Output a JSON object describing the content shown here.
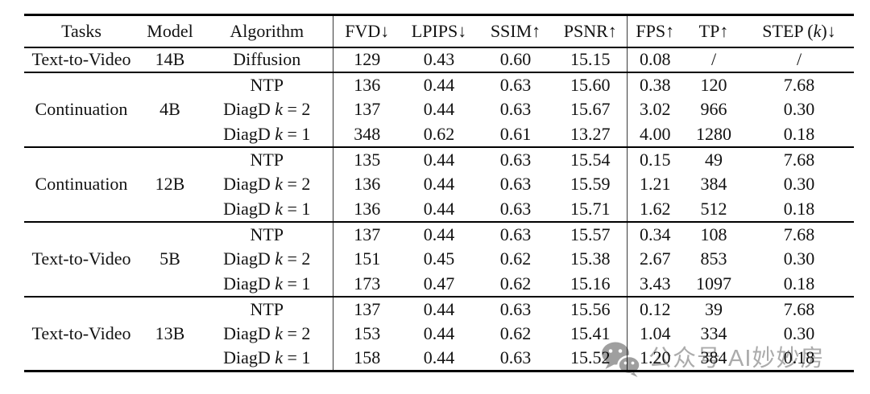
{
  "table": {
    "headers": [
      {
        "id": "tasks",
        "segments": [
          {
            "t": "Tasks"
          }
        ]
      },
      {
        "id": "model",
        "segments": [
          {
            "t": "Model"
          }
        ]
      },
      {
        "id": "algorithm",
        "segments": [
          {
            "t": "Algorithm"
          }
        ]
      },
      {
        "id": "fvd",
        "segments": [
          {
            "t": "FVD↓"
          }
        ]
      },
      {
        "id": "lpips",
        "segments": [
          {
            "t": "LPIPS↓"
          }
        ]
      },
      {
        "id": "ssim",
        "segments": [
          {
            "t": "SSIM↑"
          }
        ]
      },
      {
        "id": "psnr",
        "segments": [
          {
            "t": "PSNR↑"
          }
        ]
      },
      {
        "id": "fps",
        "segments": [
          {
            "t": "FPS↑"
          }
        ]
      },
      {
        "id": "tp",
        "segments": [
          {
            "t": "TP↑"
          }
        ]
      },
      {
        "id": "step",
        "segments": [
          {
            "t": "STEP ("
          },
          {
            "t": "k",
            "i": true
          },
          {
            "t": ")↓"
          }
        ]
      }
    ],
    "metric_columns": [
      "fvd",
      "lpips",
      "ssim",
      "psnr",
      "fps",
      "tp",
      "step"
    ],
    "groups": [
      {
        "task": "Text-to-Video",
        "model": "14B",
        "rows": [
          {
            "algorithm": [
              {
                "t": "Diffusion"
              }
            ],
            "metrics": [
              {
                "v": "129",
                "b": true
              },
              {
                "v": "0.43",
                "b": true
              },
              {
                "v": "0.60"
              },
              {
                "v": "15.15"
              },
              {
                "v": "0.08"
              },
              {
                "v": "/"
              },
              {
                "v": "/"
              }
            ]
          }
        ]
      },
      {
        "task": "Continuation",
        "model": "4B",
        "rows": [
          {
            "algorithm": [
              {
                "t": "NTP"
              }
            ],
            "metrics": [
              {
                "v": "136"
              },
              {
                "v": "0.44"
              },
              {
                "v": "0.63"
              },
              {
                "v": "15.60"
              },
              {
                "v": "0.38"
              },
              {
                "v": "120"
              },
              {
                "v": "7.68"
              }
            ]
          },
          {
            "algorithm": [
              {
                "t": "DiagD "
              },
              {
                "t": "k",
                "i": true
              },
              {
                "t": " = 2"
              }
            ],
            "metrics": [
              {
                "v": "137"
              },
              {
                "v": "0.44"
              },
              {
                "v": "0.63"
              },
              {
                "v": "15.67"
              },
              {
                "v": "3.02"
              },
              {
                "v": "966"
              },
              {
                "v": "0.30"
              }
            ]
          },
          {
            "algorithm": [
              {
                "t": "DiagD "
              },
              {
                "t": "k",
                "i": true
              },
              {
                "t": " = 1"
              }
            ],
            "metrics": [
              {
                "v": "348"
              },
              {
                "v": "0.62"
              },
              {
                "v": "0.61"
              },
              {
                "v": "13.27"
              },
              {
                "v": "4.00",
                "b": true
              },
              {
                "v": "1280",
                "b": true
              },
              {
                "v": "0.18",
                "b": true
              }
            ]
          }
        ]
      },
      {
        "task": "Continuation",
        "model": "12B",
        "rows": [
          {
            "algorithm": [
              {
                "t": "NTP"
              }
            ],
            "metrics": [
              {
                "v": "135"
              },
              {
                "v": "0.44"
              },
              {
                "v": "0.63"
              },
              {
                "v": "15.54"
              },
              {
                "v": "0.15"
              },
              {
                "v": "49"
              },
              {
                "v": "7.68"
              }
            ]
          },
          {
            "algorithm": [
              {
                "t": "DiagD "
              },
              {
                "t": "k",
                "i": true
              },
              {
                "t": " = 2"
              }
            ],
            "metrics": [
              {
                "v": "136"
              },
              {
                "v": "0.44"
              },
              {
                "v": "0.63"
              },
              {
                "v": "15.59"
              },
              {
                "v": "1.21"
              },
              {
                "v": "384"
              },
              {
                "v": "0.30"
              }
            ]
          },
          {
            "algorithm": [
              {
                "t": "DiagD "
              },
              {
                "t": "k",
                "i": true
              },
              {
                "t": " = 1"
              }
            ],
            "metrics": [
              {
                "v": "136"
              },
              {
                "v": "0.44"
              },
              {
                "v": "0.63"
              },
              {
                "v": "15.71",
                "b": true
              },
              {
                "v": "1.62"
              },
              {
                "v": "512"
              },
              {
                "v": "0.18",
                "b": true
              }
            ]
          }
        ]
      },
      {
        "task": "Text-to-Video",
        "model": "5B",
        "rows": [
          {
            "algorithm": [
              {
                "t": "NTP"
              }
            ],
            "metrics": [
              {
                "v": "137"
              },
              {
                "v": "0.44"
              },
              {
                "v": "0.63"
              },
              {
                "v": "15.57"
              },
              {
                "v": "0.34"
              },
              {
                "v": "108"
              },
              {
                "v": "7.68"
              }
            ]
          },
          {
            "algorithm": [
              {
                "t": "DiagD "
              },
              {
                "t": "k",
                "i": true
              },
              {
                "t": " = 2"
              }
            ],
            "metrics": [
              {
                "v": "151"
              },
              {
                "v": "0.45"
              },
              {
                "v": "0.62"
              },
              {
                "v": "15.38"
              },
              {
                "v": "2.67"
              },
              {
                "v": "853"
              },
              {
                "v": "0.30"
              }
            ]
          },
          {
            "algorithm": [
              {
                "t": "DiagD "
              },
              {
                "t": "k",
                "i": true
              },
              {
                "t": " = 1"
              }
            ],
            "metrics": [
              {
                "v": "173"
              },
              {
                "v": "0.47"
              },
              {
                "v": "0.62"
              },
              {
                "v": "15.16"
              },
              {
                "v": "3.43"
              },
              {
                "v": "1097"
              },
              {
                "v": "0.18",
                "b": true
              }
            ]
          }
        ]
      },
      {
        "task": "Text-to-Video",
        "model": "13B",
        "rows": [
          {
            "algorithm": [
              {
                "t": "NTP"
              }
            ],
            "metrics": [
              {
                "v": "137"
              },
              {
                "v": "0.44"
              },
              {
                "v": "0.63"
              },
              {
                "v": "15.56"
              },
              {
                "v": "0.12"
              },
              {
                "v": "39"
              },
              {
                "v": "7.68"
              }
            ]
          },
          {
            "algorithm": [
              {
                "t": "DiagD "
              },
              {
                "t": "k",
                "i": true
              },
              {
                "t": " = 2"
              }
            ],
            "metrics": [
              {
                "v": "153"
              },
              {
                "v": "0.44"
              },
              {
                "v": "0.62"
              },
              {
                "v": "15.41"
              },
              {
                "v": "1.04"
              },
              {
                "v": "334"
              },
              {
                "v": "0.30"
              }
            ]
          },
          {
            "algorithm": [
              {
                "t": "DiagD "
              },
              {
                "t": "k",
                "i": true
              },
              {
                "t": " = 1"
              }
            ],
            "metrics": [
              {
                "v": "158"
              },
              {
                "v": "0.44"
              },
              {
                "v": "0.63"
              },
              {
                "v": "15.52"
              },
              {
                "v": "1.20"
              },
              {
                "v": "384"
              },
              {
                "v": "0.18",
                "b": true
              }
            ]
          }
        ]
      }
    ]
  },
  "watermark": {
    "icon": "wechat-icon",
    "text": "公众号 AI妙妙房",
    "color": "#ababab",
    "icon_color": "#9f9f9f"
  }
}
